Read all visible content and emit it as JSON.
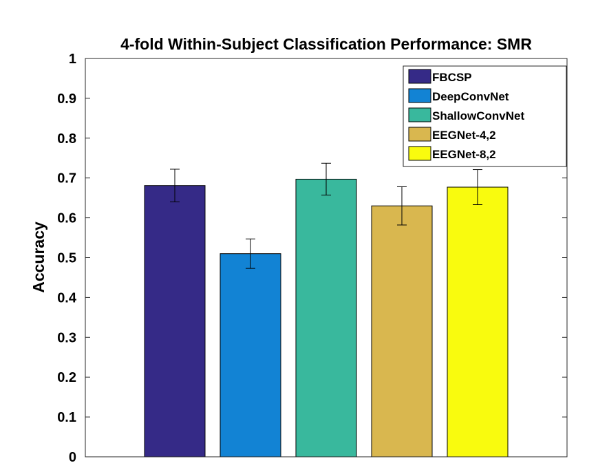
{
  "chart_data": {
    "type": "bar",
    "title": "4-fold Within-Subject Classification Performance: SMR",
    "xlabel": "",
    "ylabel": "Accuracy",
    "ylim": [
      0,
      1
    ],
    "yticks": [
      "0",
      "0.1",
      "0.2",
      "0.3",
      "0.4",
      "0.5",
      "0.6",
      "0.7",
      "0.8",
      "0.9",
      "1"
    ],
    "grid": false,
    "legend_position": "top-right",
    "series": [
      {
        "name": "FBCSP",
        "value": 0.681,
        "error": 0.041,
        "color": "#352a87"
      },
      {
        "name": "DeepConvNet",
        "value": 0.51,
        "error": 0.037,
        "color": "#1283d4"
      },
      {
        "name": "ShallowConvNet",
        "value": 0.697,
        "error": 0.04,
        "color": "#39b89d"
      },
      {
        "name": "EEGNet-4,2",
        "value": 0.63,
        "error": 0.048,
        "color": "#d9b74f"
      },
      {
        "name": "EEGNet-8,2",
        "value": 0.677,
        "error": 0.044,
        "color": "#f9fb0e"
      }
    ]
  }
}
